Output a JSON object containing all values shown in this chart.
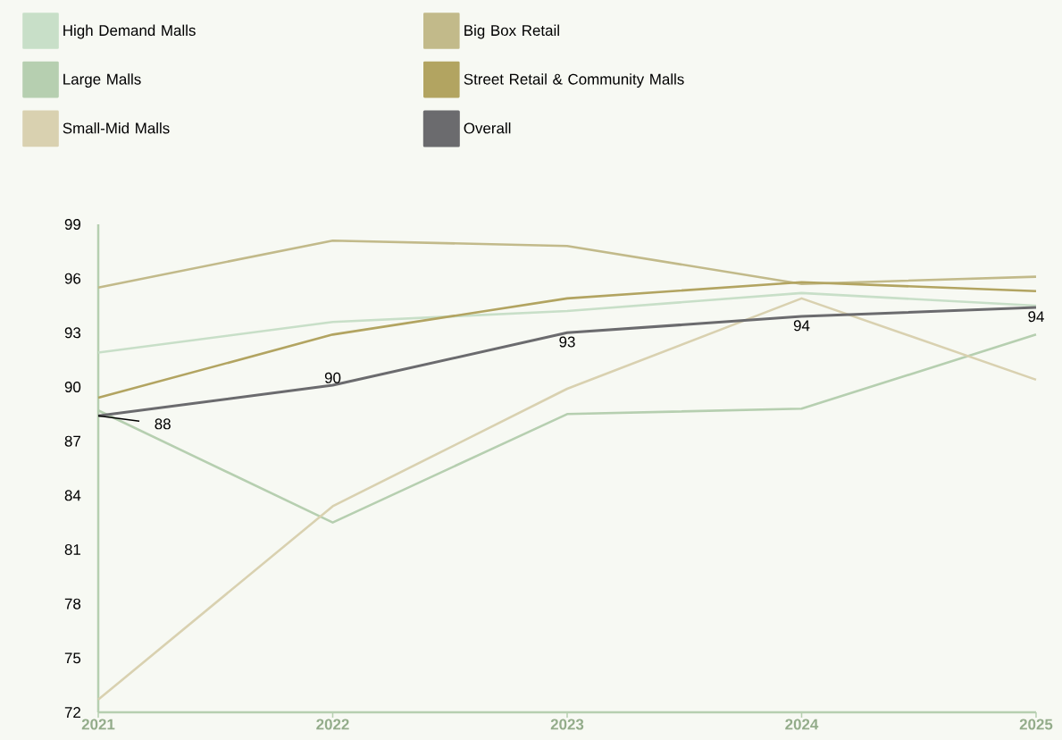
{
  "chart_data": {
    "type": "line",
    "categories": [
      "2021",
      "2022",
      "2023",
      "2024",
      "2025"
    ],
    "ylim": [
      72,
      99
    ],
    "yticks": [
      72,
      75,
      78,
      81,
      84,
      87,
      90,
      93,
      96,
      99
    ],
    "legend": "top left",
    "marker": "none",
    "grid": false,
    "series": [
      {
        "name": "High Demand Malls",
        "color": "#c8dfc8",
        "values": [
          91.9,
          93.6,
          94.2,
          95.2,
          94.5
        ]
      },
      {
        "name": "Large Malls",
        "color": "#b6cfb0",
        "values": [
          88.7,
          82.5,
          88.5,
          88.8,
          92.9
        ]
      },
      {
        "name": "Small-Mid Malls",
        "color": "#d9d1b0",
        "values": [
          72.7,
          83.4,
          89.9,
          94.9,
          90.4
        ]
      },
      {
        "name": "Big Box Retail",
        "color": "#c2ba8a",
        "values": [
          95.5,
          98.1,
          97.8,
          95.7,
          96.1
        ]
      },
      {
        "name": "Street Retail & Community Malls",
        "color": "#b2a461",
        "values": [
          89.4,
          92.9,
          94.9,
          95.8,
          95.3
        ]
      },
      {
        "name": "Overall",
        "color": "#6b6b6e",
        "values": [
          88.4,
          90.1,
          93.0,
          93.9,
          94.4
        ],
        "value_labels": [
          "88",
          "90",
          "93",
          "94",
          "94"
        ]
      }
    ]
  }
}
